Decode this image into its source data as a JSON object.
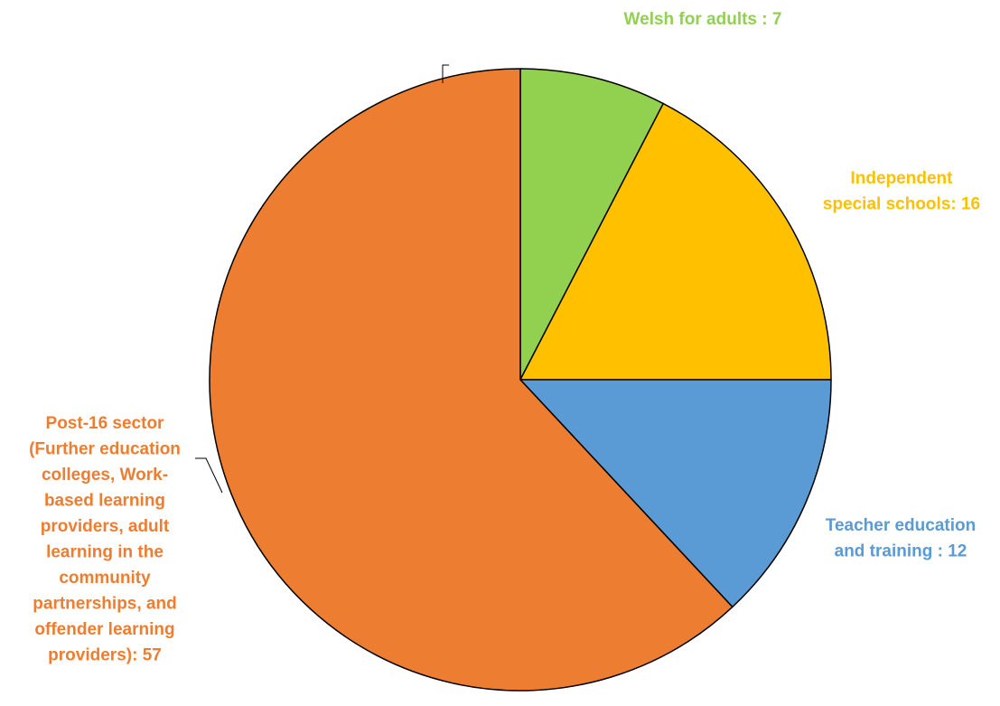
{
  "chart_data": {
    "type": "pie",
    "start_angle_deg": 0,
    "direction": "clockwise",
    "slices": [
      {
        "label": "Welsh for adults : 7",
        "value": 7,
        "color": "#92D050"
      },
      {
        "label": "Independent special schools: 16",
        "value": 16,
        "color": "#FFC000"
      },
      {
        "label": "Teacher education and training : 12",
        "value": 12,
        "color": "#5B9BD5"
      },
      {
        "label": "Post-16 sector (Further education colleges, Work-based learning providers, adult learning in the community partnerships, and offender learning providers): 57",
        "value": 57,
        "color": "#ED7D31"
      }
    ]
  }
}
